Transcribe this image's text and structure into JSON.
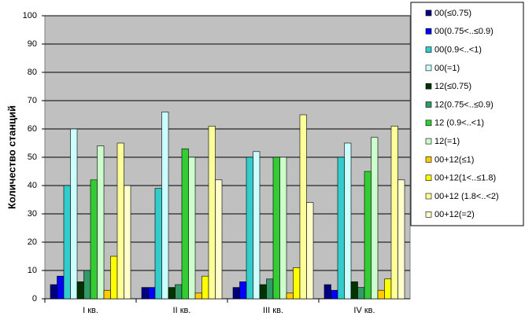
{
  "chart_data": {
    "type": "bar",
    "y_label": "Количество станций",
    "categories": [
      "I кв.",
      "II кв.",
      "III кв.",
      "IV кв."
    ],
    "series": [
      {
        "name": "00(≤0.75)",
        "color": "#000080",
        "values": [
          5,
          4,
          4,
          5
        ]
      },
      {
        "name": "00(0.75<..≤0.9)",
        "color": "#0000ff",
        "values": [
          8,
          4,
          6,
          3
        ]
      },
      {
        "name": "00(0.9<..<1)",
        "color": "#33cccc",
        "values": [
          40,
          39,
          50,
          50
        ]
      },
      {
        "name": "00(=1)",
        "color": "#ccffff",
        "values": [
          60,
          66,
          52,
          55
        ]
      },
      {
        "name": "12(≤0.75)",
        "color": "#003300",
        "values": [
          6,
          4,
          5,
          6
        ]
      },
      {
        "name": "12(0.75<..≤0.9)",
        "color": "#339966",
        "values": [
          10,
          5,
          7,
          4
        ]
      },
      {
        "name": "12 (0.9<..<1)",
        "color": "#33cc33",
        "values": [
          42,
          53,
          50,
          45
        ]
      },
      {
        "name": "12(=1)",
        "color": "#ccffcc",
        "values": [
          54,
          50,
          50,
          57
        ]
      },
      {
        "name": "00+12(≤1)",
        "color": "#ffcc00",
        "values": [
          3,
          2,
          2,
          3
        ]
      },
      {
        "name": "00+12(1<..≤1.8)",
        "color": "#ffff00",
        "values": [
          15,
          8,
          11,
          7
        ]
      },
      {
        "name": "00+12 (1.8<..<2)",
        "color": "#ffff99",
        "values": [
          55,
          61,
          65,
          61
        ]
      },
      {
        "name": "00+12(=2)",
        "color": "#ffffcc",
        "values": [
          40,
          42,
          34,
          42
        ]
      }
    ],
    "ylim": [
      0,
      100
    ],
    "yticks": [
      0,
      10,
      20,
      30,
      40,
      50,
      60,
      70,
      80,
      90,
      100
    ],
    "grid": true,
    "legend": "right"
  }
}
